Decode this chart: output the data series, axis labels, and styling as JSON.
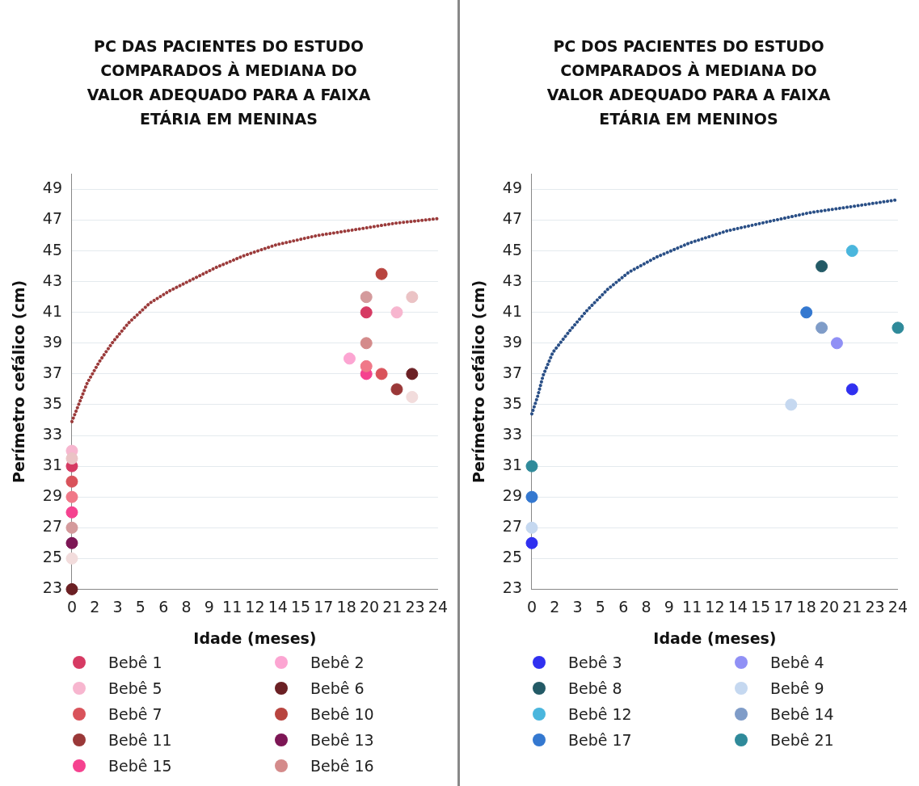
{
  "chart_data": [
    {
      "type": "scatter",
      "title": "PC DAS PACIENTES DO ESTUDO COMPARADOS À MEDIANA DO VALOR ADEQUADO PARA A FAIXA ETÁRIA EM MENINAS",
      "xlabel": "Idade (meses)",
      "ylabel": "Perímetro cefálico (cm)",
      "xlim": [
        0,
        24
      ],
      "ylim": [
        23,
        50
      ],
      "xticks": [
        0,
        {
          "value": 1.5,
          "label": "2"
        },
        3,
        {
          "value": 4.5,
          "label": "5"
        },
        6,
        {
          "value": 7.5,
          "label": "8"
        },
        9,
        {
          "value": 10.5,
          "label": "11"
        },
        12,
        {
          "value": 13.5,
          "label": "14"
        },
        15,
        {
          "value": 16.5,
          "label": "17"
        },
        18,
        {
          "value": 19.5,
          "label": "20"
        },
        21,
        {
          "value": 22.5,
          "label": "23"
        },
        24
      ],
      "yticks": [
        23,
        25,
        27,
        29,
        31,
        33,
        35,
        37,
        39,
        41,
        43,
        45,
        47,
        49
      ],
      "grid": "y",
      "legend": "bottom",
      "marker": "circle",
      "series": [
        {
          "type": "line",
          "color": "#9b3b3b",
          "marker": "none",
          "line_style": "dotted",
          "x": [
            0,
            0.4,
            1,
            1.8,
            2.7,
            3.7,
            5.1,
            6.4,
            7.8,
            9.4,
            11.3,
            13.4,
            16.1,
            19,
            21.2,
            24
          ],
          "values": [
            33.9,
            34.9,
            36.4,
            37.8,
            39.1,
            40.3,
            41.6,
            42.4,
            43.1,
            43.9,
            44.7,
            45.4,
            46,
            46.45,
            46.8,
            47.1
          ]
        },
        {
          "name": "Bebê 1",
          "color": "#d63a63",
          "x": [
            0,
            19.3
          ],
          "values": [
            31,
            41
          ]
        },
        {
          "name": "Bebê 2",
          "color": "#fca5d2",
          "x": [
            18.2
          ],
          "values": [
            38
          ]
        },
        {
          "name": "Bebê 5",
          "color": "#f7b6cf",
          "x": [
            0,
            21.3
          ],
          "values": [
            32,
            41
          ]
        },
        {
          "name": "Bebê 6",
          "color": "#6b2024",
          "x": [
            0,
            22.3
          ],
          "values": [
            23,
            37
          ]
        },
        {
          "name": "Bebê 7",
          "color": "#d9535b",
          "x": [
            0,
            20.3
          ],
          "values": [
            30,
            37
          ]
        },
        {
          "name": "Bebê 10",
          "color": "#b8443f",
          "x": [
            20.3
          ],
          "values": [
            43.5
          ]
        },
        {
          "name": "Bebê 11",
          "color": "#9a3838",
          "x": [
            21.3
          ],
          "values": [
            36
          ]
        },
        {
          "name": "Bebê 13",
          "color": "#7d1655",
          "x": [
            0
          ],
          "values": [
            26
          ]
        },
        {
          "name": "Bebê 15",
          "color": "#f5428f",
          "x": [
            0,
            19.3
          ],
          "values": [
            28,
            37
          ]
        },
        {
          "name": "Bebê 16",
          "color": "#d48b8b",
          "x": [
            19.3
          ],
          "values": [
            39
          ]
        },
        {
          "color": "#d49a9c",
          "x": [
            0,
            19.3
          ],
          "values": [
            27,
            42
          ]
        },
        {
          "color": "#ebc3c5",
          "x": [
            0,
            22.3
          ],
          "values": [
            31.5,
            42
          ]
        },
        {
          "color": "#f07888",
          "x": [
            0,
            19.3
          ],
          "values": [
            29,
            37.5
          ]
        },
        {
          "color": "#f2dcdc",
          "x": [
            0,
            22.3
          ],
          "values": [
            25,
            35.5
          ]
        }
      ]
    },
    {
      "type": "scatter",
      "title": "PC DOS PACIENTES DO ESTUDO COMPARADOS À MEDIANA DO VALOR ADEQUADO PARA A FAIXA ETÁRIA EM MENINOS",
      "xlabel": "Idade (meses)",
      "ylabel": "Perímetro cefálico (cm)",
      "xlim": [
        0,
        24
      ],
      "ylim": [
        23,
        50
      ],
      "xticks": [
        0,
        {
          "value": 1.5,
          "label": "2"
        },
        3,
        {
          "value": 4.5,
          "label": "5"
        },
        6,
        {
          "value": 7.5,
          "label": "8"
        },
        9,
        {
          "value": 10.5,
          "label": "11"
        },
        12,
        {
          "value": 13.5,
          "label": "14"
        },
        15,
        {
          "value": 16.5,
          "label": "17"
        },
        18,
        {
          "value": 19.5,
          "label": "20"
        },
        21,
        {
          "value": 22.5,
          "label": "23"
        },
        24
      ],
      "yticks": [
        23,
        25,
        27,
        29,
        31,
        33,
        35,
        37,
        39,
        41,
        43,
        45,
        47,
        49
      ],
      "grid": "y",
      "legend": "bottom",
      "marker": "circle",
      "series": [
        {
          "type": "line",
          "color": "#2a4f86",
          "marker": "none",
          "line_style": "dotted",
          "x": [
            0,
            0.37,
            0.74,
            1.38,
            2.48,
            3.59,
            4.97,
            6.34,
            8.18,
            10.3,
            12.8,
            15.5,
            18.3,
            21.1,
            23.8
          ],
          "values": [
            34.4,
            35.5,
            36.9,
            38.4,
            39.8,
            41.1,
            42.5,
            43.6,
            44.6,
            45.5,
            46.3,
            46.9,
            47.5,
            47.9,
            48.3
          ]
        },
        {
          "name": "Bebê 3",
          "color": "#3030f0",
          "x": [
            0,
            21
          ],
          "values": [
            26,
            36
          ]
        },
        {
          "name": "Bebê 4",
          "color": "#9090f5",
          "x": [
            20
          ],
          "values": [
            39
          ]
        },
        {
          "name": "Bebê 8",
          "color": "#235a66",
          "x": [
            19
          ],
          "values": [
            44
          ]
        },
        {
          "name": "Bebê 9",
          "color": "#c5d8f0",
          "x": [
            0,
            17
          ],
          "values": [
            27,
            35
          ]
        },
        {
          "name": "Bebê 12",
          "color": "#4ab6dd",
          "x": [
            21
          ],
          "values": [
            45
          ]
        },
        {
          "name": "Bebê 14",
          "color": "#7f9cc8",
          "x": [
            19
          ],
          "values": [
            40
          ]
        },
        {
          "name": "Bebê 17",
          "color": "#3478d0",
          "x": [
            0,
            18
          ],
          "values": [
            29,
            41
          ]
        },
        {
          "name": "Bebê 21",
          "color": "#2f8a9a",
          "x": [
            0,
            24
          ],
          "values": [
            31,
            40
          ]
        }
      ]
    }
  ]
}
